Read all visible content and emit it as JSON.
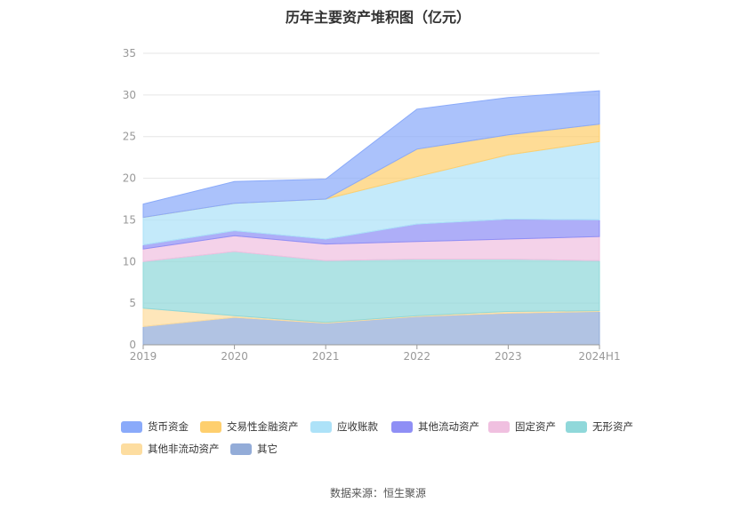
{
  "title": "历年主要资产堆积图（亿元）",
  "source": "数据来源：恒生聚源",
  "chart_data": {
    "type": "area",
    "stacked": true,
    "title": "历年主要资产堆积图（亿元）",
    "xlabel": "",
    "ylabel": "",
    "ylim": [
      0,
      35
    ],
    "yticks": [
      0,
      5,
      10,
      15,
      20,
      25,
      30,
      35
    ],
    "grid": true,
    "legend_position": "bottom",
    "categories": [
      "2019",
      "2020",
      "2021",
      "2022",
      "2023",
      "2024H1"
    ],
    "series": [
      {
        "name": "其它",
        "color": "#93acd8",
        "values": [
          2.2,
          3.3,
          2.6,
          3.4,
          3.8,
          4.0
        ]
      },
      {
        "name": "其他非流动资产",
        "color": "#fddda0",
        "values": [
          2.2,
          0.2,
          0.1,
          0.1,
          0.2,
          0.1
        ]
      },
      {
        "name": "无形资产",
        "color": "#90d8da",
        "values": [
          5.6,
          7.7,
          7.4,
          6.8,
          6.3,
          6.0
        ]
      },
      {
        "name": "固定资产",
        "color": "#f0c0e0",
        "values": [
          1.5,
          1.9,
          2.0,
          2.1,
          2.4,
          2.9
        ]
      },
      {
        "name": "其他流动资产",
        "color": "#8f8ff5",
        "values": [
          0.5,
          0.6,
          0.6,
          2.1,
          2.4,
          2.0
        ]
      },
      {
        "name": "应收账款",
        "color": "#ade2f8",
        "values": [
          3.3,
          3.3,
          4.8,
          5.7,
          7.7,
          9.4
        ]
      },
      {
        "name": "交易性金融资产",
        "color": "#fecf6e",
        "values": [
          0.0,
          0.0,
          0.0,
          3.3,
          2.4,
          2.1
        ]
      },
      {
        "name": "货币资金",
        "color": "#8aaafa",
        "values": [
          1.6,
          2.6,
          2.4,
          4.8,
          4.5,
          4.0
        ]
      }
    ],
    "legend_order": [
      "货币资金",
      "交易性金融资产",
      "应收账款",
      "其他流动资产",
      "固定资产",
      "无形资产",
      "其他非流动资产",
      "其它"
    ]
  }
}
